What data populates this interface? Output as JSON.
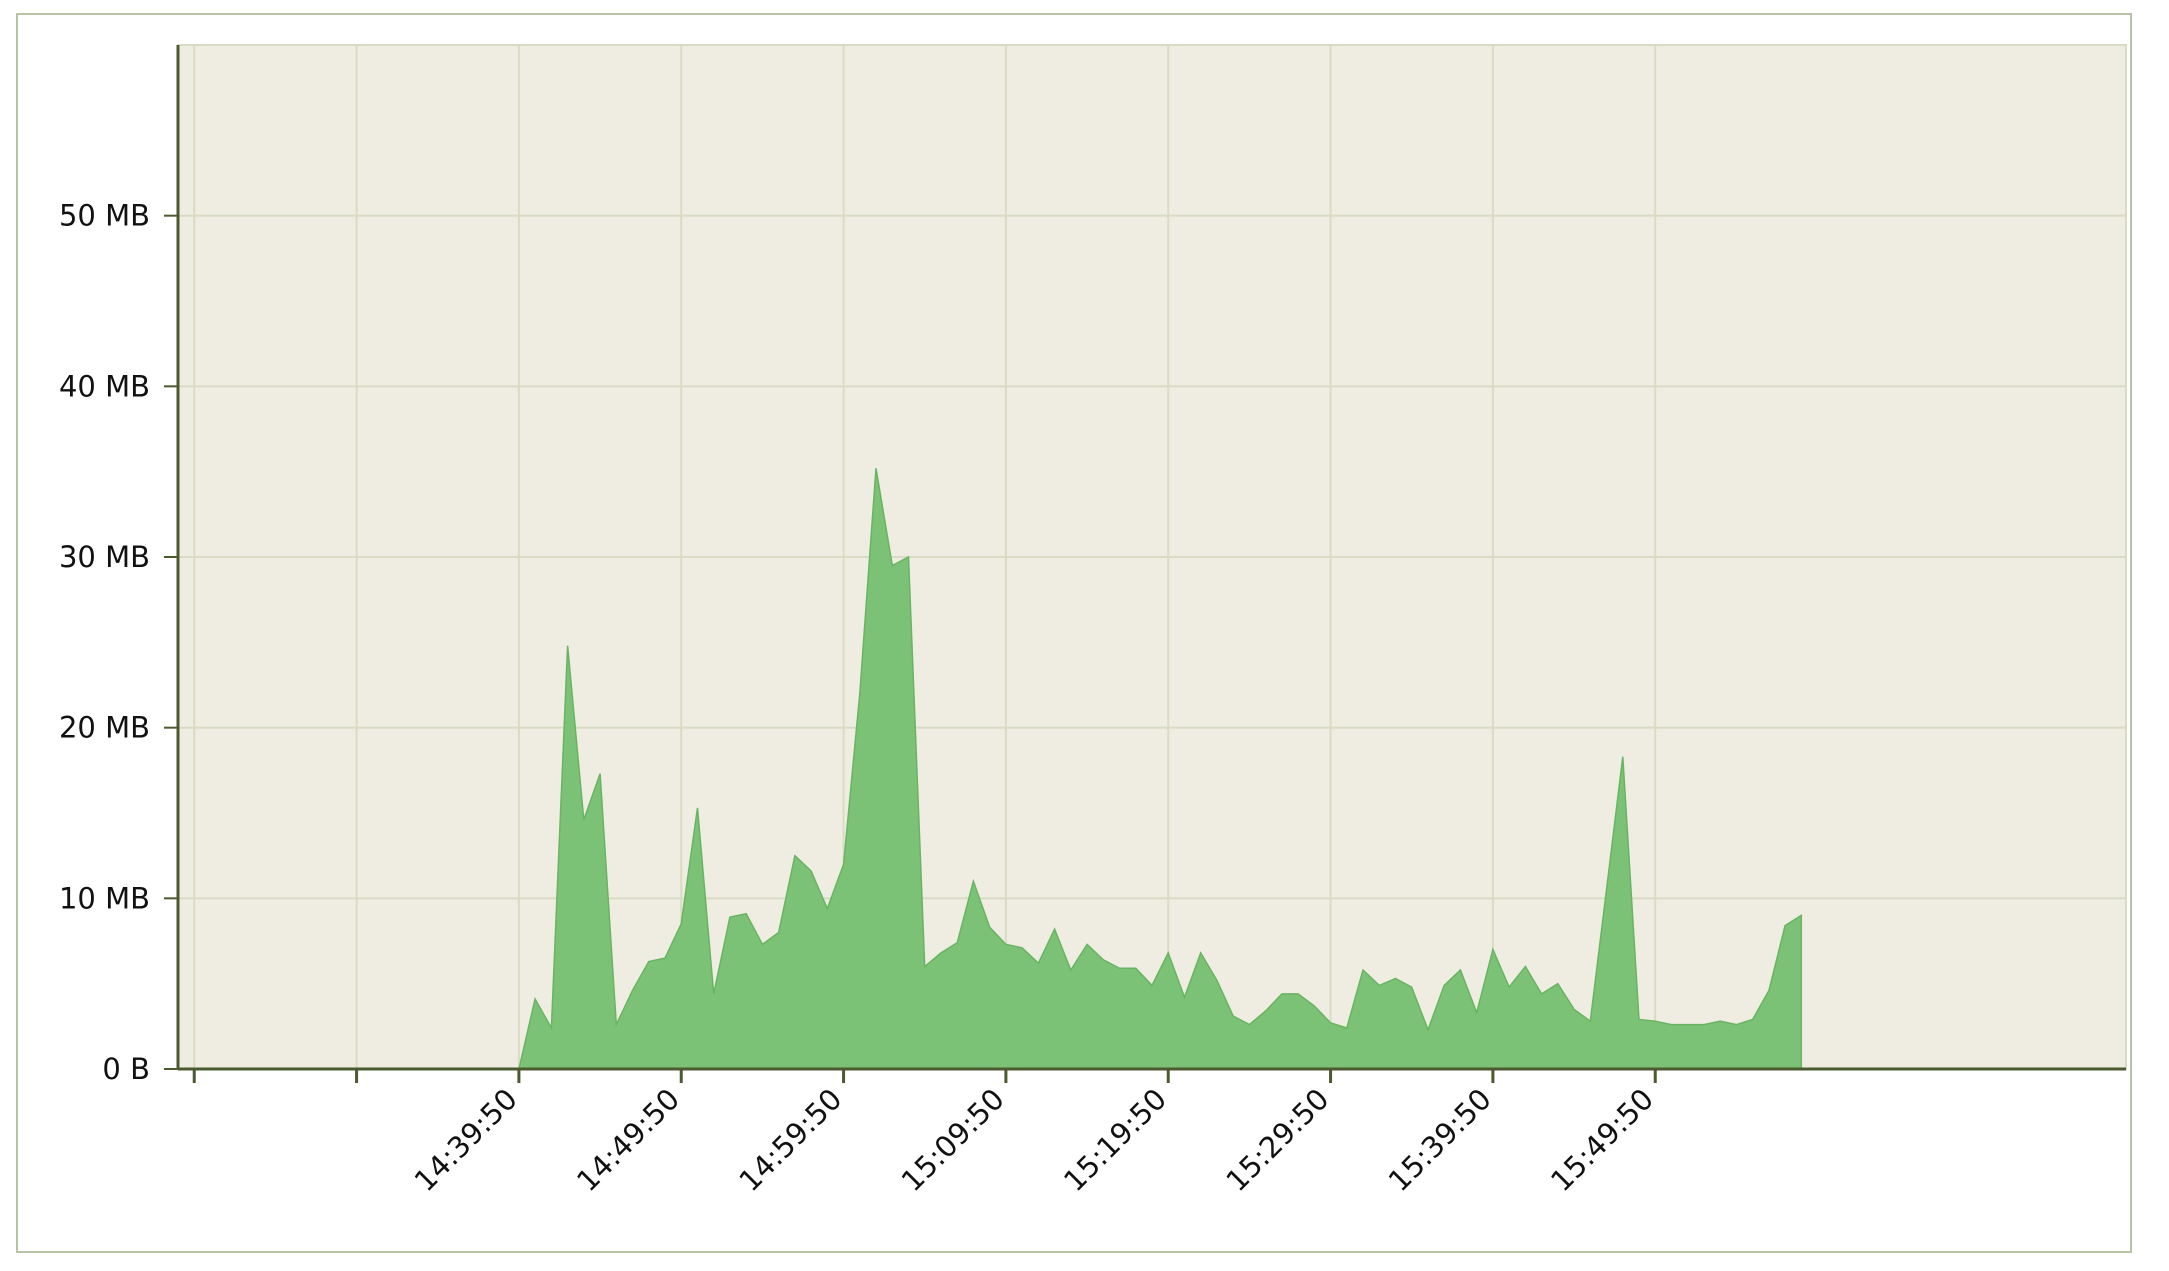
{
  "chart_data": {
    "type": "area",
    "title": "",
    "xlabel": "",
    "ylabel": "",
    "yunit": "MB",
    "ylim": [
      0,
      60
    ],
    "yticks": [
      {
        "value": 0,
        "label": "0 B"
      },
      {
        "value": 10,
        "label": "10 MB"
      },
      {
        "value": 20,
        "label": "20 MB"
      },
      {
        "value": 30,
        "label": "30 MB"
      },
      {
        "value": 40,
        "label": "40 MB"
      },
      {
        "value": 50,
        "label": "50 MB"
      }
    ],
    "xlim": [
      "14:18:50",
      "16:18:50"
    ],
    "xticks": [
      {
        "time": "14:19:50",
        "label": ""
      },
      {
        "time": "14:29:50",
        "label": ""
      },
      {
        "time": "14:39:50",
        "label": "14:39:50"
      },
      {
        "time": "14:49:50",
        "label": "14:49:50"
      },
      {
        "time": "14:59:50",
        "label": "14:59:50"
      },
      {
        "time": "15:09:50",
        "label": "15:09:50"
      },
      {
        "time": "15:19:50",
        "label": "15:19:50"
      },
      {
        "time": "15:29:50",
        "label": "15:29:50"
      },
      {
        "time": "15:39:50",
        "label": "15:39:50"
      },
      {
        "time": "15:49:50",
        "label": "15:49:50"
      }
    ],
    "grid": true,
    "colors": {
      "plot_background": "#efede1",
      "grid": "#d8dcc4",
      "axis": "#4b5a2f",
      "fill": "#7cc276",
      "stroke": "#69b463",
      "frame": "#b8c4a8"
    },
    "series": [
      {
        "x": [
          "14:39:50",
          "14:40:50",
          "14:41:50",
          "14:42:50",
          "14:43:50",
          "14:44:50",
          "14:45:50",
          "14:46:50",
          "14:47:50",
          "14:48:50",
          "14:49:50",
          "14:50:50",
          "14:51:50",
          "14:52:50",
          "14:53:50",
          "14:54:50",
          "14:55:50",
          "14:56:50",
          "14:57:50",
          "14:58:50",
          "14:59:50",
          "15:00:50",
          "15:01:50",
          "15:02:50",
          "15:03:50",
          "15:04:50",
          "15:05:50",
          "15:06:50",
          "15:07:50",
          "15:08:50",
          "15:09:50",
          "15:10:50",
          "15:11:50",
          "15:12:50",
          "15:13:50",
          "15:14:50",
          "15:15:50",
          "15:16:50",
          "15:17:50",
          "15:18:50",
          "15:19:50",
          "15:20:50",
          "15:21:50",
          "15:22:50",
          "15:23:50",
          "15:24:50",
          "15:25:50",
          "15:26:50",
          "15:27:50",
          "15:28:50",
          "15:29:50",
          "15:30:50",
          "15:31:50",
          "15:32:50",
          "15:33:50",
          "15:34:50",
          "15:35:50",
          "15:36:50",
          "15:37:50",
          "15:38:50",
          "15:39:50",
          "15:40:50",
          "15:41:50",
          "15:42:50",
          "15:43:50",
          "15:44:50",
          "15:45:50",
          "15:46:50",
          "15:47:50",
          "15:48:50",
          "15:49:50",
          "15:50:50",
          "15:51:50",
          "15:52:50",
          "15:53:50",
          "15:54:50",
          "15:55:50",
          "15:56:50",
          "15:57:50",
          "15:58:50"
        ],
        "values": [
          0,
          4.1,
          2.4,
          24.8,
          14.6,
          17.3,
          2.6,
          4.6,
          6.3,
          6.5,
          8.5,
          15.3,
          4.4,
          8.9,
          9.1,
          7.3,
          8.0,
          12.5,
          11.6,
          9.4,
          12.0,
          22.0,
          35.2,
          29.5,
          30.0,
          6.0,
          6.8,
          7.4,
          11.0,
          8.3,
          7.3,
          7.1,
          6.2,
          8.2,
          5.8,
          7.3,
          6.4,
          5.9,
          5.9,
          4.9,
          6.8,
          4.2,
          6.8,
          5.2,
          3.1,
          2.6,
          3.4,
          4.4,
          4.4,
          3.7,
          2.7,
          2.4,
          5.8,
          4.9,
          5.3,
          4.8,
          2.3,
          4.9,
          5.8,
          3.3,
          7.0,
          4.8,
          6.0,
          4.4,
          5.0,
          3.5,
          2.8,
          10.5,
          18.3,
          2.9,
          2.8,
          2.6,
          2.6,
          2.6,
          2.8,
          2.6,
          2.9,
          4.6,
          8.4,
          9.0
        ]
      }
    ]
  }
}
